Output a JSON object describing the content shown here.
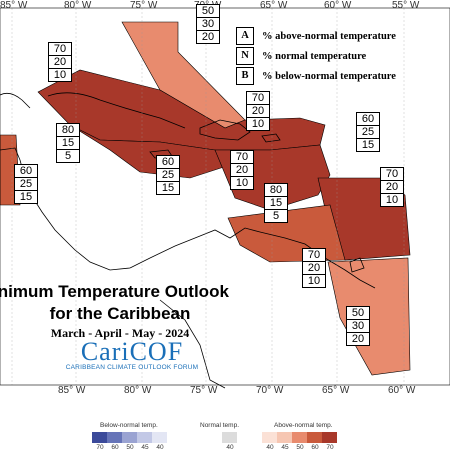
{
  "map": {
    "longitude_labels": [
      "85° W",
      "80° W",
      "75° W",
      "70° W",
      "65° W",
      "60° W",
      "55° W"
    ],
    "colors": {
      "land_outline": "#000000",
      "above_40": "#f6c6b2",
      "above_50": "#e88b6e",
      "above_60": "#c95a3c",
      "above_70": "#a8382a"
    }
  },
  "legend_abn": {
    "rows": [
      {
        "key": "A",
        "text": "% above-normal temperature"
      },
      {
        "key": "N",
        "text": "% normal temperature"
      },
      {
        "key": "B",
        "text": "% below-normal temperature"
      }
    ]
  },
  "regions": [
    {
      "a": "70",
      "n": "20",
      "b": "10"
    },
    {
      "a": "50",
      "n": "30",
      "b": "20"
    },
    {
      "a": "80",
      "n": "15",
      "b": "5"
    },
    {
      "a": "60",
      "n": "25",
      "b": "15"
    },
    {
      "a": "60",
      "n": "25",
      "b": "15"
    },
    {
      "a": "70",
      "n": "20",
      "b": "10"
    },
    {
      "a": "70",
      "n": "20",
      "b": "10"
    },
    {
      "a": "60",
      "n": "25",
      "b": "15"
    },
    {
      "a": "80",
      "n": "15",
      "b": "5"
    },
    {
      "a": "70",
      "n": "20",
      "b": "10"
    },
    {
      "a": "70",
      "n": "20",
      "b": "10"
    },
    {
      "a": "50",
      "n": "30",
      "b": "20"
    }
  ],
  "title": {
    "line1": "inimum Temperature Outlook",
    "line2": "for the Caribbean",
    "period": "March - April - May - 2024"
  },
  "logo": {
    "name": "CariCOF",
    "subtitle": "CARIBBEAN CLIMATE OUTLOOK FORUM"
  },
  "scale": {
    "below_label": "Below-normal temp.",
    "normal_label": "Normal temp.",
    "above_label": "Above-normal temp.",
    "below_ticks": [
      "70",
      "60",
      "50",
      "45",
      "40"
    ],
    "normal_ticks": [
      "40"
    ],
    "above_ticks": [
      "40",
      "45",
      "50",
      "60",
      "70"
    ],
    "below_colors": [
      "#3b4a9a",
      "#6674b8",
      "#9aa3d2",
      "#c2c8e6",
      "#e3e6f4"
    ],
    "normal_color": "#dcdcdc",
    "above_colors": [
      "#fbe1d6",
      "#f6c6b2",
      "#e88b6e",
      "#c95a3c",
      "#a8382a"
    ]
  }
}
